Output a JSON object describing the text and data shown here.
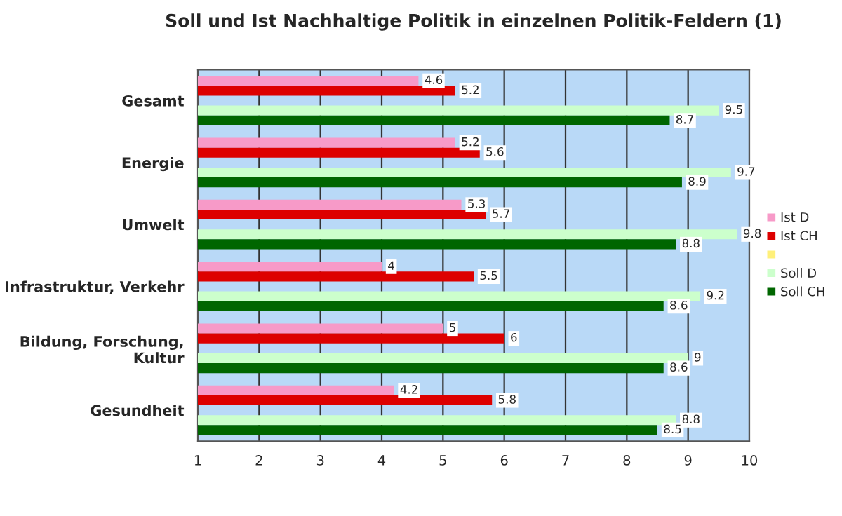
{
  "chart_data": {
    "type": "bar",
    "orientation": "horizontal",
    "title": "Soll und Ist Nachhaltige Politik in einzelnen Politik-Feldern (1)",
    "categories": [
      "Gesamt",
      "Energie",
      "Umwelt",
      "Infrastruktur, Verkehr",
      "Bildung, Forschung,\nKultur",
      "Gesundheit"
    ],
    "series": [
      {
        "name": "Ist D",
        "color": "#f79ac8",
        "values": [
          4.6,
          5.2,
          5.3,
          4,
          5,
          4.2
        ]
      },
      {
        "name": "Ist CH",
        "color": "#dd0000",
        "values": [
          5.2,
          5.6,
          5.7,
          5.5,
          6,
          5.8
        ]
      },
      {
        "color": "#fff07a",
        "values": [
          null,
          null,
          null,
          null,
          null,
          null
        ]
      },
      {
        "name": "Soll D",
        "color": "#ccffcc",
        "values": [
          9.5,
          9.7,
          9.8,
          9.2,
          9,
          8.8
        ]
      },
      {
        "name": "Soll CH",
        "color": "#006600",
        "values": [
          8.7,
          8.9,
          8.8,
          8.6,
          8.6,
          8.5
        ]
      }
    ],
    "xlim": [
      1,
      10
    ],
    "xticks": [
      1,
      2,
      3,
      4,
      5,
      6,
      7,
      8,
      9,
      10
    ],
    "grid": "x",
    "legend": "right",
    "data_labels": true
  }
}
